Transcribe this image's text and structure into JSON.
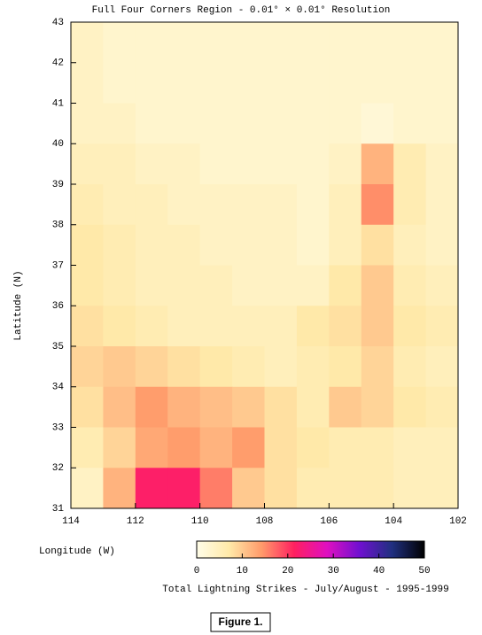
{
  "chart_data": {
    "type": "heatmap",
    "title": "Full Four Corners Region - 0.01° × 0.01° Resolution",
    "x_label": "Longitude (W)",
    "y_label": "Latitude (N)",
    "colorbar_label": "Total Lightning Strikes - July/August - 1995-1999",
    "xlim": [
      114,
      102
    ],
    "xticks": [
      114,
      112,
      110,
      108,
      106,
      104,
      102
    ],
    "ylim": [
      31,
      43
    ],
    "yticks": [
      31,
      32,
      33,
      34,
      35,
      36,
      37,
      38,
      39,
      40,
      41,
      42,
      43
    ],
    "zlim": [
      0,
      50
    ],
    "zticks": [
      0,
      10,
      20,
      30,
      40,
      50
    ],
    "colorscale": [
      "#fffde8",
      "#ffe9a8",
      "#ff9a6a",
      "#ff2060",
      "#e010c0",
      "#7010d0",
      "#203080",
      "#000000"
    ],
    "x": [
      113.5,
      112.5,
      111.5,
      110.5,
      109.5,
      108.5,
      107.5,
      106.5,
      105.5,
      104.5,
      103.5,
      102.5
    ],
    "y": [
      42.5,
      41.5,
      40.5,
      39.5,
      38.5,
      37.5,
      36.5,
      35.5,
      34.5,
      33.5,
      32.5,
      31.5
    ],
    "z": [
      [
        4,
        3,
        3,
        3,
        3,
        3,
        3,
        3,
        3,
        3,
        3,
        3
      ],
      [
        4,
        3,
        3,
        3,
        3,
        3,
        3,
        3,
        3,
        3,
        3,
        3
      ],
      [
        4,
        4,
        3,
        3,
        3,
        3,
        3,
        3,
        3,
        2,
        3,
        3
      ],
      [
        5,
        5,
        4,
        4,
        3,
        3,
        3,
        3,
        4,
        12,
        6,
        4
      ],
      [
        6,
        5,
        5,
        4,
        4,
        4,
        4,
        3,
        5,
        15,
        6,
        4
      ],
      [
        7,
        6,
        5,
        5,
        4,
        4,
        4,
        3,
        5,
        8,
        5,
        4
      ],
      [
        7,
        6,
        5,
        5,
        5,
        4,
        4,
        4,
        7,
        10,
        6,
        5
      ],
      [
        8,
        7,
        6,
        5,
        5,
        5,
        5,
        7,
        8,
        10,
        7,
        6
      ],
      [
        9,
        10,
        9,
        8,
        7,
        6,
        5,
        6,
        7,
        9,
        6,
        5
      ],
      [
        8,
        11,
        14,
        12,
        11,
        10,
        8,
        6,
        10,
        9,
        7,
        6
      ],
      [
        6,
        9,
        13,
        14,
        12,
        14,
        8,
        7,
        6,
        6,
        5,
        5
      ],
      [
        4,
        12,
        22,
        22,
        16,
        10,
        8,
        6,
        6,
        6,
        5,
        5
      ]
    ]
  },
  "caption": "Figure 1."
}
